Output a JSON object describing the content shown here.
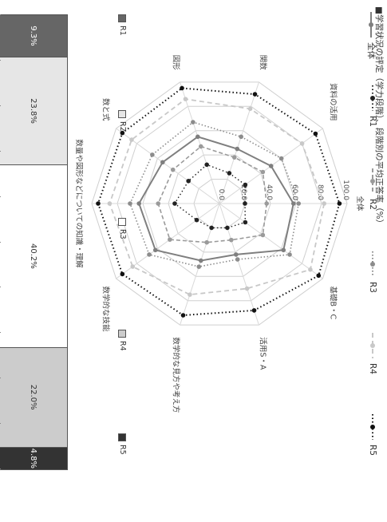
{
  "title": "■学習状況の評定（学力段階）、段階別の平均正答率（%）",
  "bar_legend": [
    {
      "label": "R1",
      "color": "#666666"
    },
    {
      "label": "R2",
      "color": "#e6e6e6"
    },
    {
      "label": "R3",
      "color": "#ffffff"
    },
    {
      "label": "R4",
      "color": "#cccccc"
    },
    {
      "label": "R5",
      "color": "#333333"
    }
  ],
  "stacked_bar": {
    "segments": [
      {
        "label": "9.3%",
        "value": 9.3,
        "color": "#666666",
        "text_color": "#ffffff"
      },
      {
        "label": "23.8%",
        "value": 23.8,
        "color": "#e6e6e6",
        "text_color": "#333333"
      },
      {
        "label": "40.2%",
        "value": 40.2,
        "color": "#ffffff",
        "text_color": "#333333"
      },
      {
        "label": "22.0%",
        "value": 22.0,
        "color": "#cccccc",
        "text_color": "#333333"
      },
      {
        "label": "4.8%",
        "value": 4.8,
        "color": "#333333",
        "text_color": "#ffffff"
      }
    ]
  },
  "chart_data": {
    "type": "radar",
    "axes": [
      "全体",
      "基礎B・C",
      "活用S・A",
      "数学的な見方や考え方",
      "数学的な技能",
      "数量や図形などについての知識・理解",
      "数と式",
      "図形",
      "関数",
      "資料の活用"
    ],
    "ticks": [
      "0.0",
      "20.0",
      "40.0",
      "60.0",
      "80.0",
      "100.0"
    ],
    "range": [
      0,
      100
    ],
    "series": [
      {
        "name": "全体",
        "values": [
          58,
          62,
          42,
          47,
          62,
          63,
          55,
          55,
          45,
          50
        ],
        "color": "#7f7f7f",
        "dash": "",
        "width": 2,
        "marker": "#7f7f7f"
      },
      {
        "name": "R1",
        "values": [
          20,
          25,
          20,
          20,
          22,
          35,
          30,
          32,
          25,
          25
        ],
        "color": "#222222",
        "dash": "1.5,3",
        "width": 1.4,
        "marker": "#222222"
      },
      {
        "name": "R2",
        "values": [
          37,
          42,
          30,
          32,
          48,
          48,
          45,
          47,
          38,
          42
        ],
        "color": "#9a9a9a",
        "dash": "5,3",
        "width": 1.6,
        "marker": "#9a9a9a"
      },
      {
        "name": "R3",
        "values": [
          62,
          68,
          46,
          52,
          68,
          70,
          65,
          67,
          55,
          60
        ],
        "color": "#8c8c8c",
        "dash": "1.5,2.5",
        "width": 1.6,
        "marker": "#8c8c8c"
      },
      {
        "name": "R4",
        "values": [
          82,
          88,
          70,
          75,
          84,
          86,
          85,
          86,
          78,
          80
        ],
        "color": "#c8c8c8",
        "dash": "6,4",
        "width": 1.8,
        "marker": "#c8c8c8"
      },
      {
        "name": "R5",
        "values": [
          94,
          96,
          88,
          92,
          94,
          95,
          94,
          95,
          90,
          93
        ],
        "color": "#111111",
        "dash": "1.5,3",
        "width": 2,
        "marker": "#111111"
      }
    ]
  },
  "legend": [
    {
      "label": "全体",
      "color": "#7f7f7f",
      "dash": ""
    },
    {
      "label": "R1",
      "color": "#222222",
      "dash": "1.5,3"
    },
    {
      "label": "R2",
      "color": "#9a9a9a",
      "dash": "5,3"
    },
    {
      "label": "R3",
      "color": "#8c8c8c",
      "dash": "1.5,2.5"
    },
    {
      "label": "R4",
      "color": "#c8c8c8",
      "dash": "6,4"
    },
    {
      "label": "R5",
      "color": "#111111",
      "dash": "1.5,3"
    }
  ]
}
